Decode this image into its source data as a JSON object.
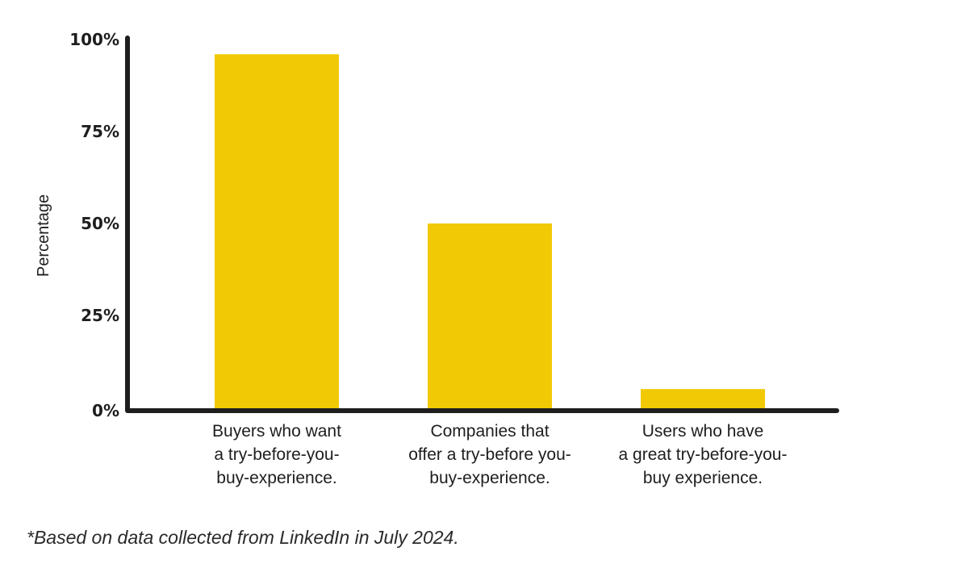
{
  "chart_data": {
    "type": "bar",
    "title": "",
    "xlabel": "",
    "ylabel": "Percentage",
    "ylim": [
      0,
      100
    ],
    "yticks": [
      0,
      25,
      50,
      75,
      100
    ],
    "ytick_labels": [
      "0%",
      "25%",
      "50%",
      "75%",
      "100%"
    ],
    "categories": [
      [
        "Buyers who want",
        "a try-before-you-",
        "buy-experience."
      ],
      [
        "Companies that",
        "offer a try-before you-",
        "buy-experience."
      ],
      [
        "Users who have",
        "a great try-before-you-",
        "buy experience."
      ]
    ],
    "values": [
      96,
      50,
      5
    ],
    "grid": false,
    "legend": "none",
    "colors": {
      "bar": "#F2C905",
      "axis": "#1E1E1E",
      "text": "#1E1E1E"
    }
  },
  "footnote": "*Based on data collected from LinkedIn in July 2024."
}
